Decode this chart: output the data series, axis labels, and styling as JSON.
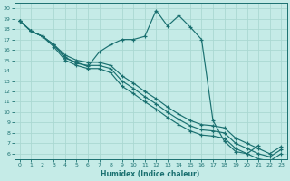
{
  "xlabel": "Humidex (Indice chaleur)",
  "xlim": [
    -0.5,
    23.5
  ],
  "ylim": [
    5.5,
    20.5
  ],
  "xticks": [
    0,
    1,
    2,
    3,
    4,
    5,
    6,
    7,
    8,
    9,
    10,
    11,
    12,
    13,
    14,
    15,
    16,
    17,
    18,
    19,
    20,
    21,
    22,
    23
  ],
  "yticks": [
    6,
    7,
    8,
    9,
    10,
    11,
    12,
    13,
    14,
    15,
    16,
    17,
    18,
    19,
    20
  ],
  "background_color": "#c5ebe7",
  "grid_color": "#aad8d2",
  "line_color": "#1a7070",
  "curves": [
    {
      "x": [
        0,
        1,
        2,
        3,
        4,
        5,
        6,
        7,
        8,
        9,
        10,
        11,
        12,
        13,
        14,
        15,
        16,
        17,
        18,
        19,
        20,
        21
      ],
      "y": [
        18.8,
        17.8,
        17.3,
        16.5,
        15.2,
        14.8,
        14.4,
        15.8,
        16.5,
        17.0,
        17.0,
        17.3,
        19.8,
        18.3,
        19.3,
        18.2,
        17.0,
        9.2,
        7.2,
        6.2,
        6.0,
        6.8
      ]
    },
    {
      "x": [
        0,
        1,
        2,
        3,
        4,
        5,
        6,
        7,
        8,
        9,
        10,
        11,
        12,
        13,
        14,
        15,
        16,
        17,
        18,
        19,
        20,
        21,
        22,
        23
      ],
      "y": [
        18.8,
        17.8,
        17.3,
        16.5,
        15.5,
        15.0,
        14.8,
        14.8,
        14.5,
        13.5,
        12.8,
        12.0,
        11.3,
        10.5,
        9.8,
        9.2,
        8.8,
        8.7,
        8.5,
        7.5,
        7.0,
        6.5,
        6.0,
        6.7
      ]
    },
    {
      "x": [
        0,
        1,
        2,
        3,
        4,
        5,
        6,
        7,
        8,
        9,
        10,
        11,
        12,
        13,
        14,
        15,
        16,
        17,
        18,
        19,
        20,
        21,
        22,
        23
      ],
      "y": [
        18.8,
        17.8,
        17.3,
        16.5,
        15.3,
        14.7,
        14.5,
        14.5,
        14.2,
        13.0,
        12.3,
        11.5,
        10.8,
        10.0,
        9.3,
        8.7,
        8.3,
        8.2,
        8.0,
        7.0,
        6.5,
        6.0,
        5.7,
        6.4
      ]
    },
    {
      "x": [
        0,
        1,
        2,
        3,
        4,
        5,
        6,
        7,
        8,
        9,
        10,
        11,
        12,
        13,
        14,
        15,
        16,
        17,
        18,
        19,
        20,
        21,
        22,
        23
      ],
      "y": [
        18.8,
        17.8,
        17.3,
        16.3,
        15.0,
        14.5,
        14.2,
        14.2,
        13.8,
        12.5,
        11.8,
        11.0,
        10.3,
        9.5,
        8.8,
        8.2,
        7.8,
        7.7,
        7.5,
        6.5,
        6.0,
        5.5,
        5.3,
        6.0
      ]
    }
  ]
}
